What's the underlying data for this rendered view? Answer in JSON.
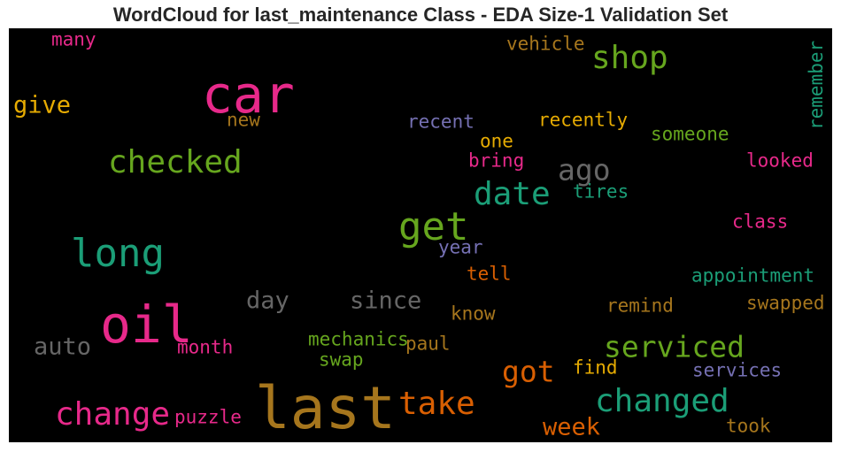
{
  "chart_data": {
    "type": "wordcloud",
    "title": "WordCloud for last_maintenance Class - EDA Size-1 Validation Set",
    "background": "#000000",
    "words": [
      {
        "text": "last",
        "color": "#a6761d",
        "size": 1.0
      },
      {
        "text": "car",
        "color": "#e7298a",
        "size": 0.88
      },
      {
        "text": "oil",
        "color": "#e7298a",
        "size": 0.88
      },
      {
        "text": "get",
        "color": "#66a61e",
        "size": 0.68
      },
      {
        "text": "long",
        "color": "#1b9e77",
        "size": 0.68
      },
      {
        "text": "checked",
        "color": "#66a61e",
        "size": 0.55
      },
      {
        "text": "change",
        "color": "#e7298a",
        "size": 0.55
      },
      {
        "text": "changed",
        "color": "#1b9e77",
        "size": 0.55
      },
      {
        "text": "date",
        "color": "#1b9e77",
        "size": 0.55
      },
      {
        "text": "shop",
        "color": "#66a61e",
        "size": 0.55
      },
      {
        "text": "take",
        "color": "#d95f02",
        "size": 0.55
      },
      {
        "text": "serviced",
        "color": "#66a61e",
        "size": 0.5
      },
      {
        "text": "got",
        "color": "#d95f02",
        "size": 0.5
      },
      {
        "text": "ago",
        "color": "#666666",
        "size": 0.5
      },
      {
        "text": "since",
        "color": "#666666",
        "size": 0.42
      },
      {
        "text": "day",
        "color": "#666666",
        "size": 0.42
      },
      {
        "text": "auto",
        "color": "#666666",
        "size": 0.42
      },
      {
        "text": "week",
        "color": "#d95f02",
        "size": 0.42
      },
      {
        "text": "give",
        "color": "#e6ab02",
        "size": 0.42
      },
      {
        "text": "remember",
        "color": "#1b9e77",
        "size": 0.32
      },
      {
        "text": "recently",
        "color": "#e6ab02",
        "size": 0.32
      },
      {
        "text": "someone",
        "color": "#66a61e",
        "size": 0.32
      },
      {
        "text": "looked",
        "color": "#e7298a",
        "size": 0.32
      },
      {
        "text": "recent",
        "color": "#7570b3",
        "size": 0.32
      },
      {
        "text": "vehicle",
        "color": "#a6761d",
        "size": 0.32
      },
      {
        "text": "many",
        "color": "#e7298a",
        "size": 0.32
      },
      {
        "text": "new",
        "color": "#a6761d",
        "size": 0.32
      },
      {
        "text": "one",
        "color": "#e6ab02",
        "size": 0.32
      },
      {
        "text": "bring",
        "color": "#e7298a",
        "size": 0.32
      },
      {
        "text": "tires",
        "color": "#1b9e77",
        "size": 0.32
      },
      {
        "text": "class",
        "color": "#e7298a",
        "size": 0.32
      },
      {
        "text": "year",
        "color": "#7570b3",
        "size": 0.32
      },
      {
        "text": "tell",
        "color": "#d95f02",
        "size": 0.32
      },
      {
        "text": "appointment",
        "color": "#1b9e77",
        "size": 0.32
      },
      {
        "text": "remind",
        "color": "#a6761d",
        "size": 0.32
      },
      {
        "text": "know",
        "color": "#a6761d",
        "size": 0.32
      },
      {
        "text": "swapped",
        "color": "#a6761d",
        "size": 0.32
      },
      {
        "text": "mechanics",
        "color": "#66a61e",
        "size": 0.32
      },
      {
        "text": "paul",
        "color": "#a6761d",
        "size": 0.32
      },
      {
        "text": "month",
        "color": "#e7298a",
        "size": 0.32
      },
      {
        "text": "swap",
        "color": "#66a61e",
        "size": 0.32
      },
      {
        "text": "find",
        "color": "#e6ab02",
        "size": 0.32
      },
      {
        "text": "services",
        "color": "#7570b3",
        "size": 0.32
      },
      {
        "text": "puzzle",
        "color": "#e7298a",
        "size": 0.32
      },
      {
        "text": "took",
        "color": "#a6761d",
        "size": 0.32
      }
    ]
  }
}
